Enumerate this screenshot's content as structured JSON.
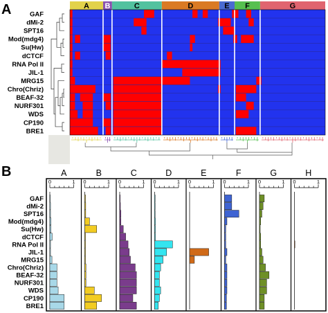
{
  "chart_data": [
    {
      "type": "heatmap",
      "panel": "A",
      "rows": [
        "GAF",
        "dMi-2",
        "SPT16",
        "Mod(mdg4)",
        "Su(Hw)",
        "dCTCF",
        "RNA Pol II",
        "JIL-1",
        "MRG15",
        "Chro(Chriz)",
        "BEAF-32",
        "NURF301",
        "WDS",
        "CP190",
        "BRE1"
      ],
      "clusters": [
        {
          "name": "A",
          "start": 0.0,
          "end": 0.13,
          "color": "#e2d24b"
        },
        {
          "name": "B",
          "start": 0.13,
          "end": 0.165,
          "color": "#8a52b0"
        },
        {
          "name": "C",
          "start": 0.165,
          "end": 0.36,
          "color": "#52c29f"
        },
        {
          "name": "D",
          "start": 0.36,
          "end": 0.585,
          "color": "#da7a24"
        },
        {
          "name": "E",
          "start": 0.585,
          "end": 0.645,
          "color": "#4a6bd1"
        },
        {
          "name": "F",
          "start": 0.645,
          "end": 0.745,
          "color": "#56c050"
        },
        {
          "name": "G",
          "start": 0.745,
          "end": 1.0,
          "color": "#e0646f"
        }
      ],
      "cell_colors": {
        "present": "#ff0000",
        "absent": "#2233ee"
      },
      "red_segments": [
        [
          [
            0.0,
            0.01
          ],
          [
            0.29,
            0.33
          ],
          [
            0.48,
            0.5
          ],
          [
            0.52,
            0.54
          ],
          [
            0.635,
            0.66
          ],
          [
            0.69,
            0.71
          ]
        ],
        [
          [
            0.0,
            0.01
          ],
          [
            0.25,
            0.3
          ],
          [
            0.58,
            0.63
          ],
          [
            0.7,
            0.72
          ]
        ],
        [
          [
            0.0,
            0.01
          ],
          [
            0.28,
            0.3
          ],
          [
            0.6,
            0.645
          ]
        ],
        [
          [
            0.0,
            0.01
          ],
          [
            0.02,
            0.04
          ],
          [
            0.13,
            0.16
          ],
          [
            0.47,
            0.49
          ],
          [
            0.64,
            0.655
          ],
          [
            0.67,
            0.72
          ]
        ],
        [
          [
            0.0,
            0.01
          ],
          [
            0.13,
            0.16
          ],
          [
            0.47,
            0.48
          ]
        ],
        [
          [
            0.0,
            0.01
          ],
          [
            0.02,
            0.04
          ],
          [
            0.14,
            0.16
          ],
          [
            0.38,
            0.4
          ]
        ],
        [
          [
            0.0,
            0.01
          ],
          [
            0.36,
            0.59
          ]
        ],
        [
          [
            0.0,
            0.01
          ],
          [
            0.44,
            0.59
          ]
        ],
        [
          [
            0.0,
            0.02
          ],
          [
            0.17,
            0.36
          ],
          [
            0.36,
            0.47
          ],
          [
            0.73,
            0.75
          ]
        ],
        [
          [
            0.0,
            0.1
          ],
          [
            0.17,
            0.36
          ],
          [
            0.58,
            0.59
          ],
          [
            0.65,
            0.73
          ]
        ],
        [
          [
            0.0,
            0.02
          ],
          [
            0.04,
            0.09
          ],
          [
            0.13,
            0.16
          ],
          [
            0.17,
            0.36
          ],
          [
            0.65,
            0.69
          ]
        ],
        [
          [
            0.0,
            0.02
          ],
          [
            0.05,
            0.09
          ],
          [
            0.14,
            0.16
          ],
          [
            0.17,
            0.36
          ],
          [
            0.69,
            0.72
          ]
        ],
        [
          [
            0.0,
            0.03
          ],
          [
            0.05,
            0.09
          ],
          [
            0.17,
            0.36
          ],
          [
            0.65,
            0.7
          ]
        ],
        [
          [
            0.0,
            0.09
          ],
          [
            0.13,
            0.16
          ],
          [
            0.17,
            0.36
          ]
        ],
        [
          [
            0.0,
            0.11
          ],
          [
            0.14,
            0.16
          ],
          [
            0.17,
            0.36
          ],
          [
            0.65,
            0.73
          ]
        ]
      ]
    },
    {
      "type": "bar",
      "panel": "B",
      "orientation": "horizontal",
      "categories": [
        "GAF",
        "dMi-2",
        "SPT16",
        "Mod(mdg4)",
        "Su(Hw)",
        "dCTCF",
        "RNA Pol II",
        "JIL-1",
        "MRG15",
        "Chro(Chriz)",
        "BEAF-32",
        "NURF301",
        "WDS",
        "CP190",
        "BRE1"
      ],
      "xlim": [
        0,
        1
      ],
      "tick_labels": [
        "0",
        "1"
      ],
      "series": [
        {
          "name": "A",
          "color": "#a8d8e8",
          "values": [
            0.02,
            0.03,
            0.03,
            0.05,
            0.05,
            0.1,
            0.03,
            0.03,
            0.09,
            0.3,
            0.3,
            0.3,
            0.35,
            0.6,
            0.6
          ]
        },
        {
          "name": "B",
          "color": "#f2cc22",
          "values": [
            0.03,
            0.04,
            0.04,
            0.2,
            0.5,
            0.03,
            0.03,
            0.03,
            0.03,
            0.05,
            0.05,
            0.05,
            0.4,
            0.7,
            0.5
          ]
        },
        {
          "name": "C",
          "color": "#7a3c8c",
          "values": [
            0.02,
            0.03,
            0.05,
            0.05,
            0.15,
            0.25,
            0.35,
            0.4,
            0.45,
            0.65,
            0.7,
            0.7,
            0.7,
            0.55,
            0.7
          ]
        },
        {
          "name": "D",
          "color": "#33e5f0",
          "values": [
            0.02,
            0.02,
            0.02,
            0.03,
            0.03,
            0.03,
            0.75,
            0.5,
            0.35,
            0.25,
            0.2,
            0.2,
            0.25,
            0.2,
            0.15
          ]
        },
        {
          "name": "E",
          "color": "#d06a18",
          "values": [
            0.0,
            0.0,
            0.0,
            0.0,
            0.0,
            0.0,
            0.0,
            0.8,
            0.2,
            0.0,
            0.0,
            0.0,
            0.0,
            0.0,
            0.0
          ]
        },
        {
          "name": "F",
          "color": "#3f64d3",
          "values": [
            0.3,
            0.3,
            0.6,
            0.1,
            0.05,
            0.05,
            0.05,
            0.1,
            0.05,
            0.1,
            0.1,
            0.1,
            0.1,
            0.08,
            0.08
          ]
        },
        {
          "name": "G",
          "color": "#6e8f26",
          "values": [
            0.2,
            0.15,
            0.1,
            0.05,
            0.03,
            0.05,
            0.05,
            0.1,
            0.15,
            0.25,
            0.4,
            0.3,
            0.3,
            0.2,
            0.2
          ]
        },
        {
          "name": "H",
          "color": "#d06a18",
          "values": [
            0.0,
            0.0,
            0.0,
            0.0,
            0.0,
            0.0,
            0.02,
            0.0,
            0.0,
            0.0,
            0.0,
            0.0,
            0.0,
            0.0,
            0.0
          ]
        }
      ]
    }
  ]
}
